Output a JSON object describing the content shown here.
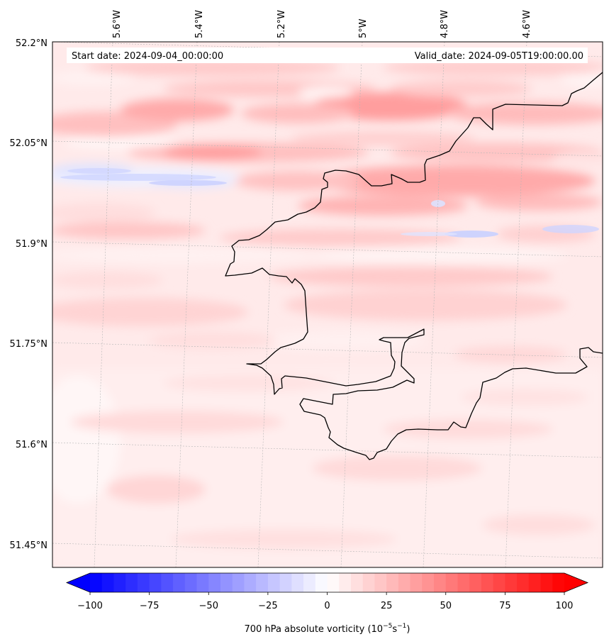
{
  "map": {
    "start_date": "Start date: 2024-09-04_00:00:00",
    "valid_date": "Valid_date: 2024-09-05T19:00:00.00",
    "lon_labels": [
      "5.6°W",
      "5.4°W",
      "5.2°W",
      "5°W",
      "4.8°W",
      "4.6°W"
    ],
    "lat_labels": [
      "52.2°N",
      "52.05°N",
      "51.9°N",
      "51.75°N",
      "51.6°N",
      "51.45°N"
    ]
  },
  "colorbar": {
    "ticks": [
      "−100",
      "−75",
      "−50",
      "−25",
      "0",
      "25",
      "50",
      "75",
      "100"
    ],
    "min": -100,
    "max": 100,
    "label_prefix": "700 hPa absolute vorticity (10",
    "label_exp1": "−5",
    "label_mid": "s",
    "label_exp2": "−1",
    "label_suffix": ")"
  },
  "colors": {
    "negative_max": "#0000ff",
    "zero": "#ffffff",
    "positive_max": "#ff0000",
    "coastline": "#000000"
  }
}
